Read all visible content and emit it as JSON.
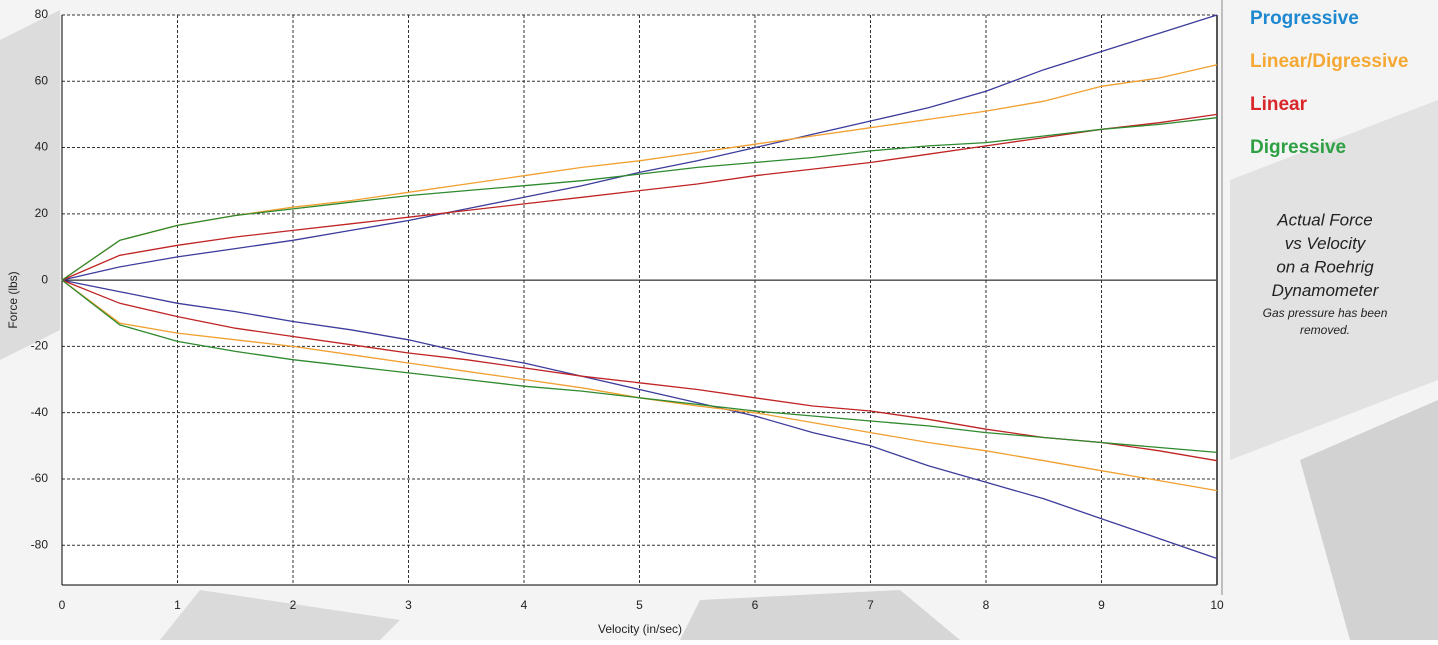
{
  "chart_data": {
    "type": "line",
    "xlabel": "Velocity (in/sec)",
    "ylabel": "Force (lbs)",
    "x": [
      0,
      0.5,
      1,
      1.5,
      2,
      2.5,
      3,
      3.5,
      4,
      4.5,
      5,
      5.5,
      6,
      6.5,
      7,
      7.5,
      8,
      8.5,
      9,
      9.5,
      10
    ],
    "xlim": [
      0,
      10
    ],
    "xticks": [
      0,
      1,
      2,
      3,
      4,
      5,
      6,
      7,
      8,
      9,
      10
    ],
    "ylim": [
      -92,
      80
    ],
    "yticks": [
      -80,
      -60,
      -40,
      -20,
      0,
      20,
      40,
      60,
      80
    ],
    "grid": true,
    "legend": "right",
    "series": [
      {
        "name": "Progressive",
        "color": "#3c3c9c",
        "legend_color": "#1e88d0",
        "values": [
          0,
          4,
          7,
          9.5,
          12,
          15,
          18,
          21.5,
          25,
          28.5,
          32.5,
          36,
          40,
          44,
          48,
          52,
          57,
          63.5,
          69,
          74.5,
          80
        ],
        "rebound_values": [
          0,
          -3.5,
          -7,
          -9.5,
          -12.5,
          -15,
          -18,
          -22,
          -25,
          -29,
          -33,
          -37,
          -41,
          -46,
          -50,
          -56,
          -61,
          -66,
          -72,
          -78,
          -84
        ]
      },
      {
        "name": "Linear/Digressive",
        "color": "#f0a030",
        "legend_color": "#f5a833",
        "values": [
          0,
          12,
          16.5,
          19.5,
          22,
          24,
          26.5,
          29,
          31.5,
          34,
          36,
          38.5,
          41,
          43.5,
          46,
          48.5,
          51,
          54,
          58.5,
          61,
          65
        ],
        "rebound_values": [
          0,
          -13,
          -16,
          -18,
          -20,
          -22.5,
          -25,
          -27.5,
          -30,
          -32.5,
          -35.5,
          -38,
          -40,
          -43,
          -46,
          -49,
          -51.5,
          -54.5,
          -57.5,
          -60.5,
          -63.5
        ]
      },
      {
        "name": "Linear",
        "color": "#c02424",
        "legend_color": "#d9262b",
        "values": [
          0,
          7.5,
          10.5,
          13,
          15,
          17,
          19,
          21,
          23,
          25,
          27,
          29,
          31.5,
          33.5,
          35.5,
          38,
          40.5,
          43,
          45.5,
          47.5,
          50
        ],
        "rebound_values": [
          0,
          -7,
          -11,
          -14.5,
          -17,
          -19.5,
          -22,
          -24,
          -26.5,
          -29,
          -31,
          -33,
          -35.5,
          -38,
          -39.5,
          -42,
          -45,
          -47.5,
          -49,
          -51.5,
          -54.5
        ]
      },
      {
        "name": "Digressive",
        "color": "#2e8a2e",
        "legend_color": "#2ea043",
        "values": [
          0,
          12,
          16.5,
          19.5,
          21.5,
          23.5,
          25.5,
          27,
          28.5,
          30,
          32,
          34,
          35.5,
          37,
          39,
          40.5,
          41.5,
          43.5,
          45.5,
          47,
          49
        ],
        "rebound_values": [
          0,
          -13.5,
          -18.5,
          -21.5,
          -24,
          -26,
          -28,
          -30,
          -32,
          -33.5,
          -35.5,
          -37.5,
          -39.5,
          -41,
          -42.5,
          -44,
          -46,
          -47.5,
          -49,
          -50.5,
          -52
        ]
      }
    ],
    "annotation": [
      "Actual Force",
      "vs Velocity",
      "on a Roehrig",
      "Dynamometer"
    ],
    "note": [
      "Gas pressure has been",
      "removed."
    ]
  }
}
